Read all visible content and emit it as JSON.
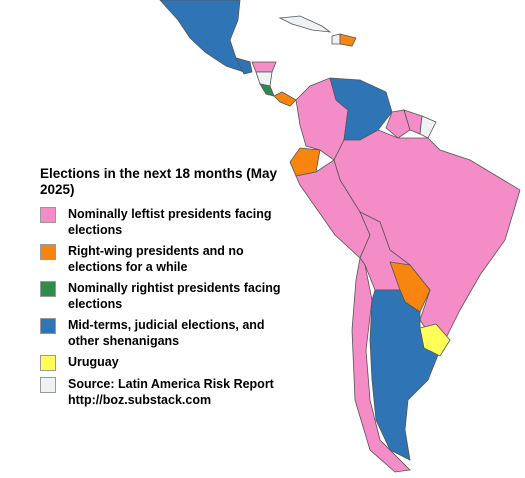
{
  "legend": {
    "title": "Elections in the next 18 months (May 2025)",
    "items": [
      {
        "label": "Nominally leftist presidents facing elections",
        "color": "#f48cc8"
      },
      {
        "label": "Right-wing presidents and no elections for a while",
        "color": "#f7850f"
      },
      {
        "label": "Nominally rightist presidents facing elections",
        "color": "#2e8b4a"
      },
      {
        "label": "Mid-terms, judicial elections, and other shenanigans",
        "color": "#2f74b5"
      },
      {
        "label": "Uruguay",
        "color": "#ffff55"
      },
      {
        "label": "Source: Latin America Risk Report http://boz.substack.com",
        "color": "#eef2f4"
      }
    ]
  }
}
